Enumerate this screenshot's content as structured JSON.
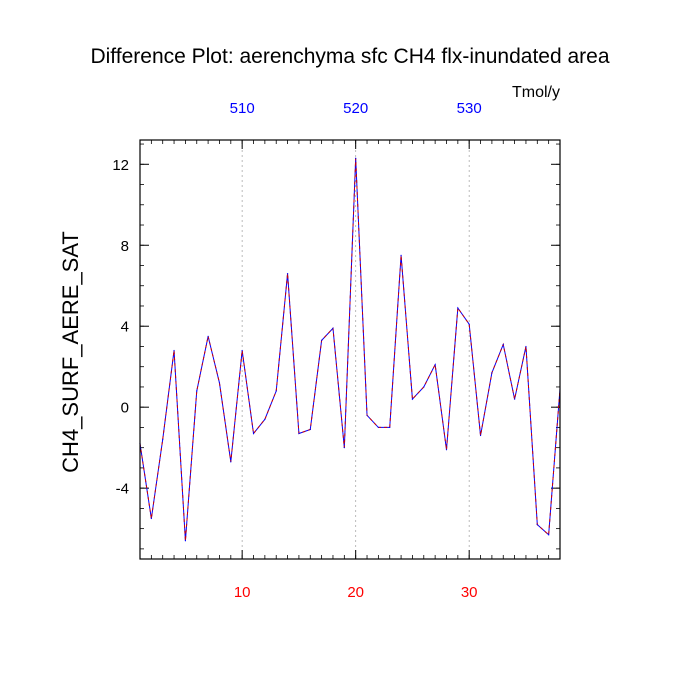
{
  "chart_data": {
    "type": "line",
    "title": "Difference Plot: aerenchyma sfc CH4 flx-inundated area",
    "units": "Tmol/y",
    "ylabel": "CH4_SURF_AERE_SAT",
    "xlabel": "",
    "xlim": [
      1,
      38
    ],
    "ylim": [
      -7.5,
      13.2
    ],
    "x_ticks": [
      10,
      20,
      30
    ],
    "x_tick_labels": [
      "10",
      "20",
      "30"
    ],
    "top_axis_tick_labels": [
      "510",
      "520",
      "530"
    ],
    "y_ticks": [
      -4,
      0,
      4,
      8,
      12
    ],
    "y_tick_labels": [
      "-4",
      "0",
      "4",
      "8",
      "12"
    ],
    "grid": "vertical dashed lines at x = 10, 20, 30",
    "colors": {
      "line_solid": "#0000ff",
      "line_dash": "#cc0000",
      "bottom_tick_labels": "#ff0000",
      "top_tick_labels": "#0000ff",
      "grid": "#aaaaaa"
    },
    "series": [
      {
        "x": [
          1,
          2,
          3,
          4,
          5,
          6,
          7,
          8,
          9,
          10,
          11,
          12,
          13,
          14,
          15,
          16,
          17,
          18,
          19,
          20,
          21,
          22,
          23,
          24,
          25,
          26,
          27,
          28,
          29,
          30,
          31,
          32,
          33,
          34,
          35,
          36,
          37,
          38
        ],
        "values": [
          -1.8,
          -5.5,
          -1.6,
          2.8,
          -6.6,
          0.8,
          3.5,
          1.2,
          -2.7,
          2.8,
          -1.3,
          -0.6,
          0.8,
          6.6,
          -1.3,
          -1.1,
          3.3,
          3.9,
          -2.0,
          12.3,
          -0.4,
          -1.0,
          -1.0,
          7.5,
          0.4,
          1.0,
          2.1,
          -2.1,
          4.9,
          4.1,
          -1.4,
          1.7,
          3.1,
          0.4,
          3.0,
          -5.8,
          -6.3,
          0.9
        ]
      }
    ]
  }
}
